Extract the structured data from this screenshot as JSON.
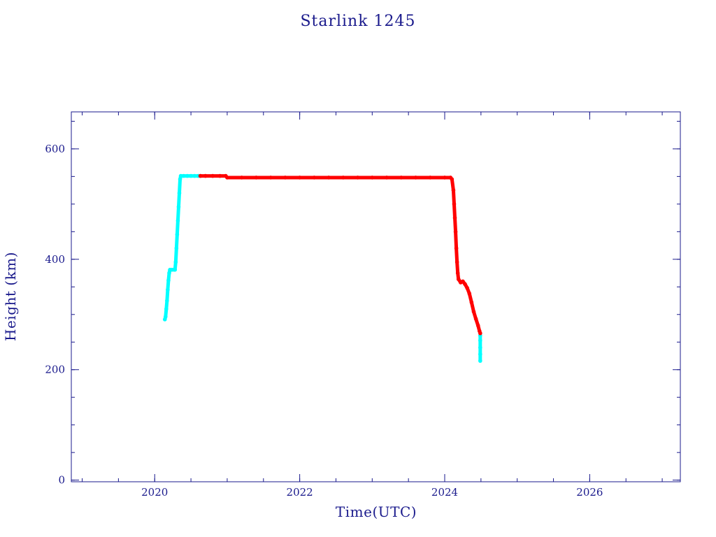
{
  "chart_data": {
    "type": "scatter",
    "title": "Starlink 1245",
    "xlabel": "Time(UTC)",
    "ylabel": "Height (km)",
    "xlim": [
      2018.85,
      2027.25
    ],
    "ylim": [
      -3,
      667
    ],
    "x_ticks": [
      2020,
      2022,
      2024,
      2026
    ],
    "y_ticks": [
      0,
      200,
      400,
      600
    ],
    "x_tick_labels": [
      "2020",
      "2022",
      "2024",
      "2026"
    ],
    "y_tick_labels": [
      "0",
      "200",
      "400",
      "600"
    ],
    "grid": false,
    "legend": "none",
    "colors": {
      "axis": "#1a1a8c",
      "series_a": "#00ffff",
      "series_b": "#ff0000"
    },
    "series": [
      {
        "color": "#00ffff",
        "points": [
          [
            2020.14,
            291
          ],
          [
            2020.15,
            296
          ],
          [
            2020.16,
            310
          ],
          [
            2020.17,
            325
          ],
          [
            2020.18,
            345
          ],
          [
            2020.19,
            362
          ],
          [
            2020.2,
            375
          ],
          [
            2020.21,
            381
          ],
          [
            2020.24,
            381
          ],
          [
            2020.27,
            381
          ],
          [
            2020.28,
            381
          ],
          [
            2020.29,
            395
          ],
          [
            2020.3,
            420
          ],
          [
            2020.31,
            445
          ],
          [
            2020.32,
            470
          ],
          [
            2020.33,
            495
          ],
          [
            2020.34,
            520
          ],
          [
            2020.35,
            545
          ],
          [
            2020.36,
            551
          ],
          [
            2020.4,
            551
          ],
          [
            2020.45,
            551
          ],
          [
            2020.5,
            551
          ],
          [
            2020.55,
            551
          ],
          [
            2020.6,
            551
          ],
          [
            2020.63,
            551
          ],
          [
            2024.49,
            262
          ],
          [
            2024.49,
            253
          ],
          [
            2024.49,
            240
          ],
          [
            2024.49,
            228
          ],
          [
            2024.49,
            216
          ]
        ]
      },
      {
        "color": "#ff0000",
        "points": [
          [
            2020.63,
            551
          ],
          [
            2020.7,
            551
          ],
          [
            2020.8,
            551
          ],
          [
            2020.9,
            551
          ],
          [
            2020.98,
            551
          ],
          [
            2021.0,
            548
          ],
          [
            2021.2,
            548
          ],
          [
            2021.4,
            548
          ],
          [
            2021.6,
            548
          ],
          [
            2021.8,
            548
          ],
          [
            2022.0,
            548
          ],
          [
            2022.2,
            548
          ],
          [
            2022.4,
            548
          ],
          [
            2022.6,
            548
          ],
          [
            2022.8,
            548
          ],
          [
            2023.0,
            548
          ],
          [
            2023.2,
            548
          ],
          [
            2023.4,
            548
          ],
          [
            2023.6,
            548
          ],
          [
            2023.8,
            548
          ],
          [
            2024.0,
            548
          ],
          [
            2024.08,
            548
          ],
          [
            2024.1,
            545
          ],
          [
            2024.12,
            525
          ],
          [
            2024.13,
            500
          ],
          [
            2024.14,
            475
          ],
          [
            2024.15,
            450
          ],
          [
            2024.16,
            420
          ],
          [
            2024.17,
            395
          ],
          [
            2024.18,
            375
          ],
          [
            2024.19,
            364
          ],
          [
            2024.22,
            358
          ],
          [
            2024.25,
            360
          ],
          [
            2024.28,
            355
          ],
          [
            2024.31,
            348
          ],
          [
            2024.34,
            338
          ],
          [
            2024.37,
            322
          ],
          [
            2024.4,
            305
          ],
          [
            2024.43,
            292
          ],
          [
            2024.46,
            280
          ],
          [
            2024.48,
            270
          ],
          [
            2024.49,
            266
          ]
        ]
      }
    ]
  }
}
